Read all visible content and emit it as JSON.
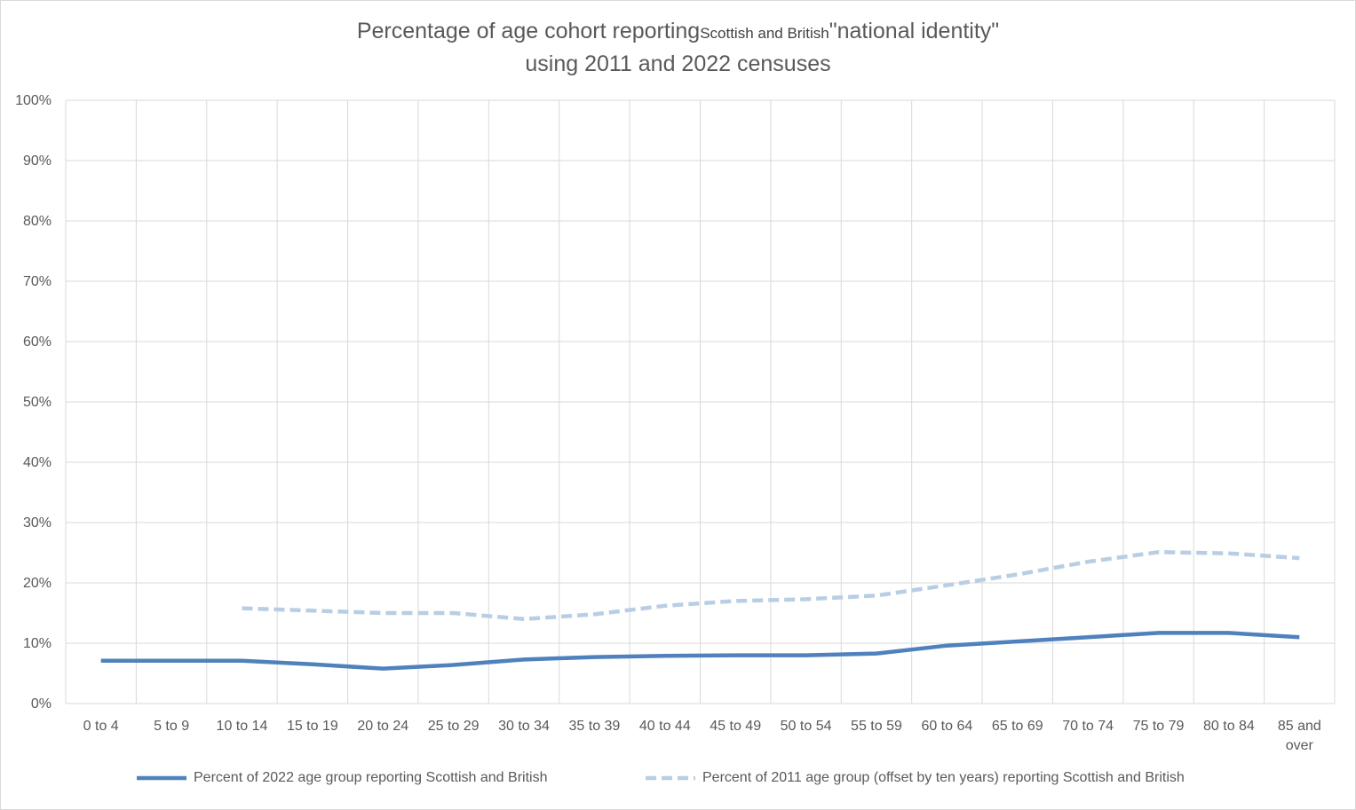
{
  "chart_data": {
    "type": "line",
    "title_parts": [
      "Percentage of age cohort reporting",
      "Scottish and British",
      "\"national identity\""
    ],
    "title_line2": "using 2011 and 2022 censuses",
    "categories": [
      "0 to  4",
      "5 to 9",
      "10 to 14",
      "15 to 19",
      "20 to 24",
      "25 to 29",
      "30 to 34",
      "35 to 39",
      "40 to 44",
      "45 to 49",
      "50 to 54",
      "55 to 59",
      "60 to 64",
      "65 to 69",
      "70 to 74",
      "75 to 79",
      "80 to 84",
      "85 and over"
    ],
    "category_lines": [
      [
        "0 to  4"
      ],
      [
        "5 to 9"
      ],
      [
        "10 to 14"
      ],
      [
        "15 to 19"
      ],
      [
        "20 to 24"
      ],
      [
        "25 to 29"
      ],
      [
        "30 to 34"
      ],
      [
        "35 to 39"
      ],
      [
        "40 to 44"
      ],
      [
        "45 to 49"
      ],
      [
        "50 to 54"
      ],
      [
        "55 to 59"
      ],
      [
        "60 to 64"
      ],
      [
        "65 to 69"
      ],
      [
        "70 to 74"
      ],
      [
        "75 to 79"
      ],
      [
        "80 to 84"
      ],
      [
        "85 and",
        "over"
      ]
    ],
    "y_ticks": [
      "0%",
      "10%",
      "20%",
      "30%",
      "40%",
      "50%",
      "60%",
      "70%",
      "80%",
      "90%",
      "100%"
    ],
    "ylim": [
      0,
      100
    ],
    "grid": true,
    "legend_position": "bottom",
    "series": [
      {
        "name": "Percent of 2022 age group reporting Scottish and British",
        "color": "#4f81bd",
        "style": "solid",
        "values": [
          7.1,
          7.1,
          7.1,
          6.5,
          5.8,
          6.4,
          7.3,
          7.7,
          7.9,
          8.0,
          8.0,
          8.3,
          9.6,
          10.3,
          11.0,
          11.7,
          11.7,
          11.0
        ]
      },
      {
        "name": "Percent of 2011 age group (offset by ten years) reporting Scottish and British",
        "color": "#b9cde5",
        "style": "dashed",
        "values": [
          null,
          null,
          15.8,
          15.4,
          15.0,
          15.0,
          14.0,
          14.8,
          16.2,
          17.0,
          17.3,
          17.9,
          19.6,
          21.4,
          23.5,
          25.1,
          24.9,
          24.1
        ]
      }
    ]
  }
}
